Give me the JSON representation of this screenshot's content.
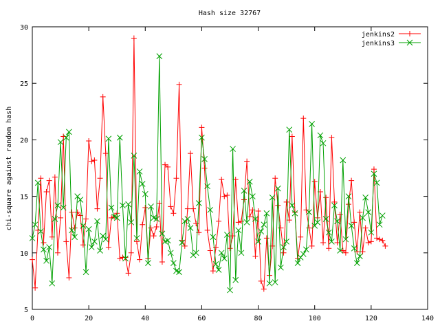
{
  "chart_data": {
    "type": "line",
    "title": "Hash size 32767",
    "xlabel": "",
    "ylabel": "chi-square against random hash",
    "xlim": [
      0,
      140
    ],
    "ylim": [
      5,
      30
    ],
    "xticks": [
      0,
      20,
      40,
      60,
      80,
      100,
      120,
      140
    ],
    "yticks": [
      5,
      10,
      15,
      20,
      25,
      30
    ],
    "legend": "top-right",
    "grid": false,
    "series": [
      {
        "name": "jenkins2",
        "color": "#ff0000",
        "marker": "plus",
        "x": [
          0,
          1,
          2,
          3,
          4,
          5,
          6,
          7,
          8,
          9,
          10,
          11,
          12,
          13,
          14,
          15,
          16,
          17,
          18,
          19,
          20,
          21,
          22,
          23,
          24,
          25,
          26,
          27,
          28,
          29,
          30,
          31,
          32,
          33,
          34,
          35,
          36,
          37,
          38,
          39,
          40,
          41,
          42,
          43,
          44,
          45,
          46,
          47,
          48,
          49,
          50,
          51,
          52,
          53,
          54,
          55,
          56,
          57,
          58,
          59,
          60,
          61,
          62,
          63,
          64,
          65,
          66,
          67,
          68,
          69,
          70,
          71,
          72,
          73,
          74,
          75,
          76,
          77,
          78,
          79,
          80,
          81,
          82,
          83,
          84,
          85,
          86,
          87,
          88,
          89,
          90,
          91,
          92,
          93,
          94,
          95,
          96,
          97,
          98,
          99,
          100,
          101,
          102,
          103,
          104,
          105,
          106,
          107,
          108,
          109,
          110,
          111,
          112,
          113,
          114,
          115,
          116,
          117,
          118,
          119,
          120,
          121,
          122,
          123,
          124,
          125
        ],
        "y": [
          9.4,
          6.9,
          12.0,
          16.6,
          10.9,
          15.4,
          16.4,
          11.4,
          16.7,
          10.0,
          13.1,
          20.3,
          11.0,
          7.8,
          13.6,
          12.2,
          13.6,
          13.3,
          10.7,
          13.0,
          19.9,
          18.1,
          18.2,
          13.9,
          16.6,
          23.8,
          18.8,
          10.5,
          13.1,
          13.2,
          13.5,
          9.5,
          9.6,
          9.6,
          8.2,
          10.0,
          29.0,
          11.0,
          9.4,
          12.5,
          14.0,
          9.5,
          12.2,
          11.5,
          12.3,
          14.4,
          9.2,
          17.8,
          17.6,
          14.1,
          13.5,
          16.6,
          24.9,
          11.1,
          10.6,
          13.9,
          18.8,
          13.9,
          12.6,
          11.8,
          21.1,
          17.5,
          12.0,
          10.2,
          8.4,
          10.5,
          12.8,
          16.5,
          15.0,
          15.1,
          10.4,
          11.5,
          16.5,
          12.7,
          12.8,
          14.7,
          18.1,
          13.2,
          13.8,
          9.7,
          13.7,
          7.5,
          6.8,
          11.3,
          8.0,
          10.6,
          16.6,
          14.2,
          12.2,
          10.0,
          14.5,
          12.9,
          20.3,
          13.6,
          9.5,
          11.4,
          21.9,
          13.8,
          12.2,
          10.6,
          16.3,
          13.1,
          15.4,
          10.9,
          14.9,
          10.4,
          20.2,
          14.5,
          10.9,
          13.4,
          10.2,
          10.0,
          14.3,
          16.4,
          12.7,
          10.1,
          13.6,
          10.1,
          12.2,
          10.9,
          11.0,
          17.4,
          11.3,
          11.2,
          11.1,
          10.6
        ]
      },
      {
        "name": "jenkins3",
        "color": "#00a000",
        "marker": "cross",
        "x": [
          0,
          1,
          2,
          3,
          4,
          5,
          6,
          7,
          8,
          9,
          10,
          11,
          12,
          13,
          14,
          15,
          16,
          17,
          18,
          19,
          20,
          21,
          22,
          23,
          24,
          25,
          26,
          27,
          28,
          29,
          30,
          31,
          32,
          33,
          34,
          35,
          36,
          37,
          38,
          39,
          40,
          41,
          42,
          43,
          44,
          45,
          46,
          47,
          48,
          49,
          50,
          51,
          52,
          53,
          54,
          55,
          56,
          57,
          58,
          59,
          60,
          61,
          62,
          63,
          64,
          65,
          66,
          67,
          68,
          69,
          70,
          71,
          72,
          73,
          74,
          75,
          76,
          77,
          78,
          79,
          80,
          81,
          82,
          83,
          84,
          85,
          86,
          87,
          88,
          89,
          90,
          91,
          92,
          93,
          94,
          95,
          96,
          97,
          98,
          99,
          100,
          101,
          102,
          103,
          104,
          105,
          106,
          107,
          108,
          109,
          110,
          111,
          112,
          113,
          114,
          115,
          116,
          117,
          118,
          119,
          120,
          121,
          122,
          123,
          124,
          125
        ],
        "y": [
          11.3,
          12.5,
          16.2,
          11.9,
          10.3,
          9.3,
          10.5,
          7.3,
          13.0,
          14.2,
          19.8,
          14.0,
          20.2,
          20.7,
          12.0,
          11.4,
          15.0,
          14.7,
          12.4,
          8.3,
          12.1,
          10.5,
          11.0,
          12.8,
          10.2,
          11.5,
          11.2,
          20.1,
          14.0,
          13.2,
          13.1,
          20.2,
          14.2,
          9.5,
          14.3,
          12.7,
          18.6,
          11.3,
          17.2,
          16.1,
          15.2,
          9.1,
          14.1,
          13.1,
          13.0,
          27.4,
          11.7,
          11.0,
          11.1,
          10.0,
          9.1,
          8.4,
          8.3,
          10.9,
          12.8,
          13.0,
          12.2,
          9.8,
          10.0,
          14.4,
          20.2,
          18.3,
          15.9,
          13.8,
          11.4,
          9.0,
          8.5,
          10.0,
          9.5,
          11.6,
          6.7,
          19.2,
          7.6,
          12.0,
          10.0,
          15.5,
          12.7,
          16.3,
          15.0,
          13.0,
          11.0,
          11.9,
          12.5,
          13.5,
          7.3,
          14.9,
          7.4,
          15.7,
          8.7,
          10.5,
          11.0,
          20.9,
          14.2,
          13.5,
          9.1,
          9.6,
          9.9,
          10.3,
          13.6,
          21.4,
          12.4,
          12.7,
          20.4,
          19.7,
          13.0,
          11.8,
          11.0,
          14.2,
          12.8,
          10.2,
          18.2,
          11.2,
          15.0,
          12.4,
          10.4,
          9.1,
          9.7,
          13.1,
          14.9,
          13.6,
          11.8,
          17.0,
          16.2,
          12.5,
          13.3,
          null
        ]
      }
    ]
  }
}
